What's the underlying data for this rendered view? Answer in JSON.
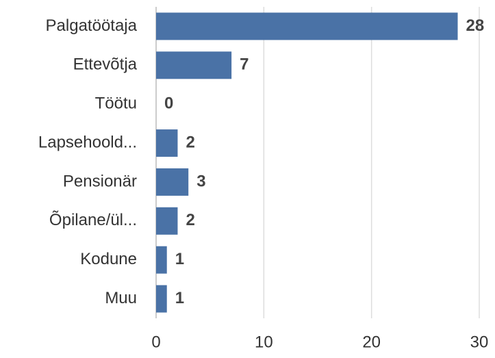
{
  "chart_data": {
    "type": "bar",
    "orientation": "horizontal",
    "categories": [
      "Palgatöötaja",
      "Ettevõtja",
      "Töötu",
      "Lapsehoold...",
      "Pensionär",
      "Õpilane/ül...",
      "Kodune",
      "Muu"
    ],
    "values": [
      28,
      7,
      0,
      2,
      3,
      2,
      1,
      1
    ],
    "color": "#4a72a6",
    "xlim": [
      0,
      30
    ],
    "xticks": [
      0,
      10,
      20,
      30
    ],
    "grid": true
  }
}
